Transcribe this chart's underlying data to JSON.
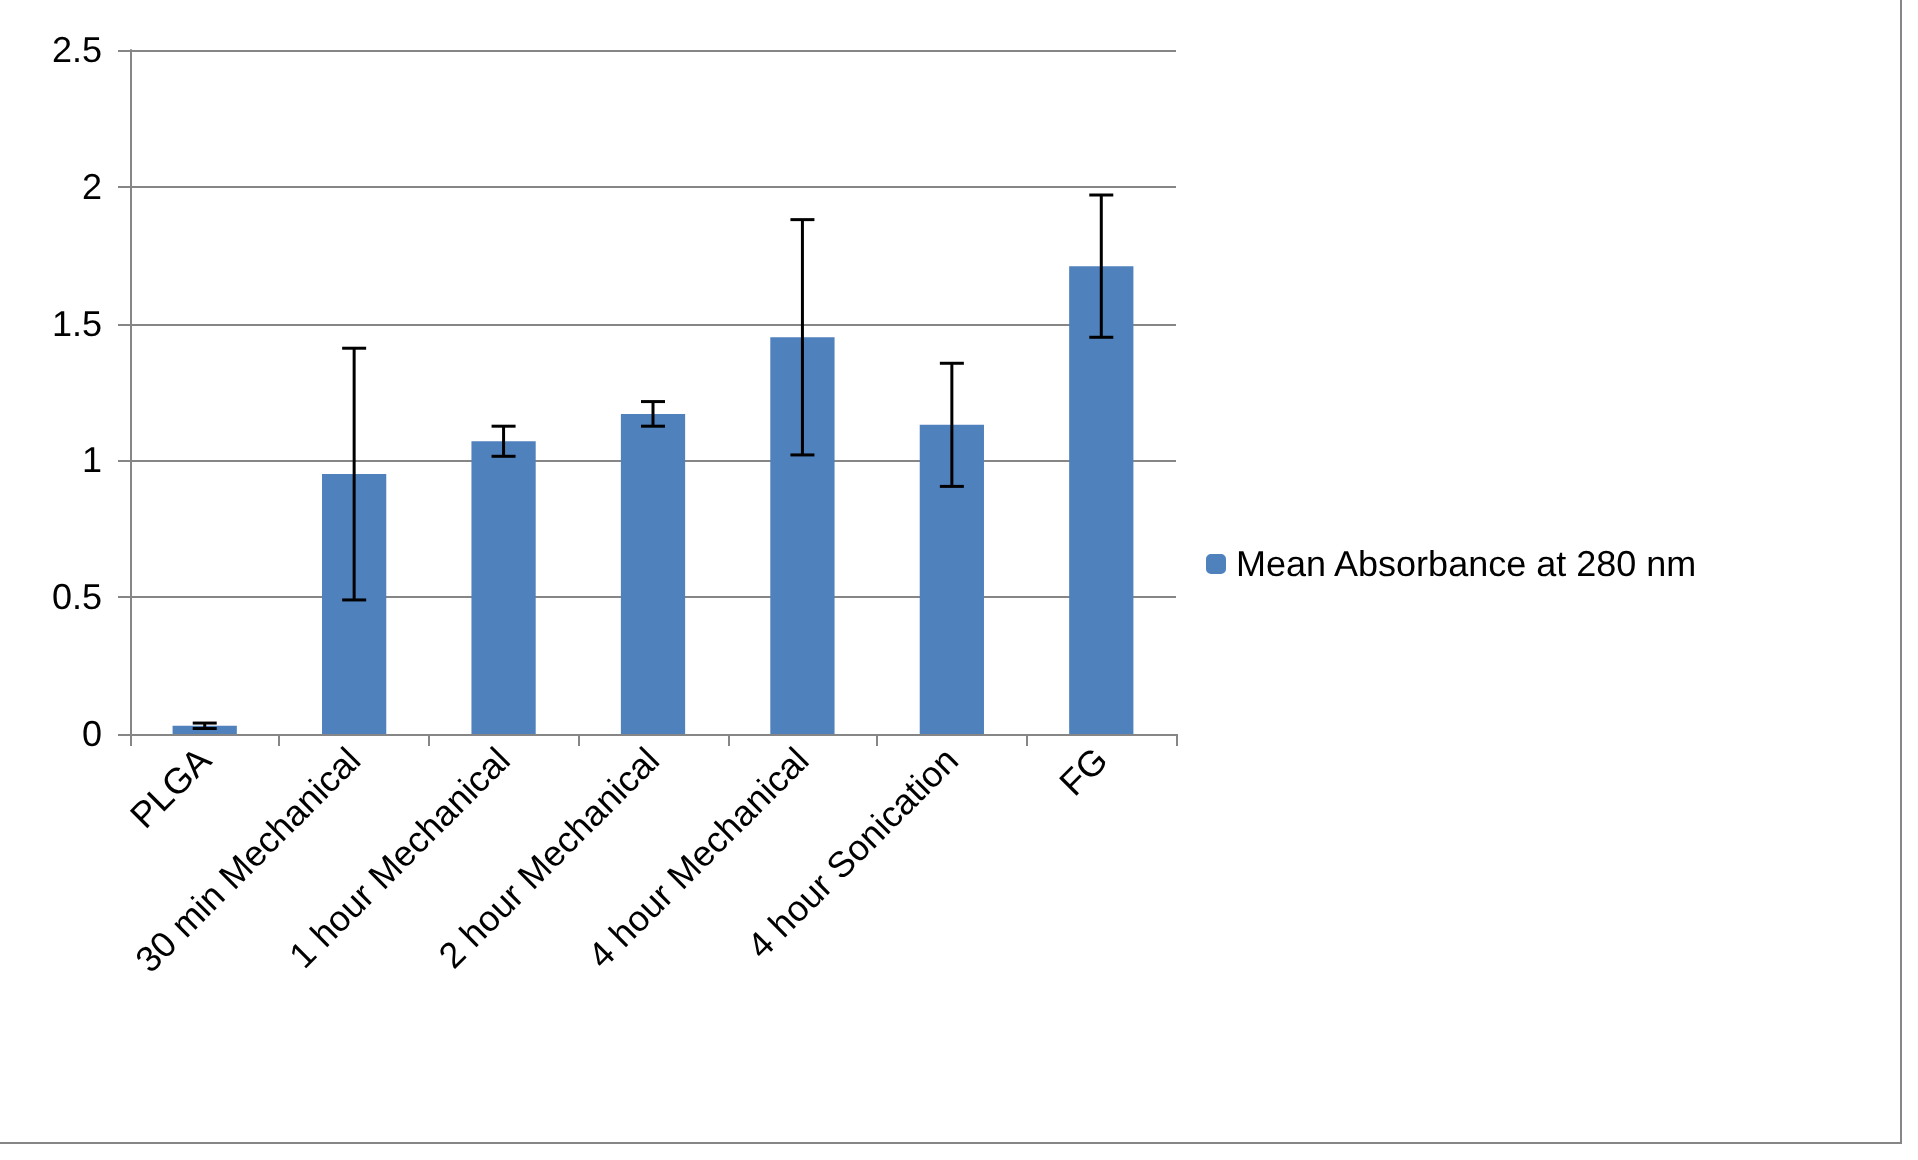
{
  "chart_data": {
    "type": "bar",
    "categories": [
      "PLGA",
      "30 min Mechanical",
      "1 hour Mechanical",
      "2 hour Mechanical",
      "4 hour Mechanical",
      "4 hour Sonication",
      "FG"
    ],
    "series": [
      {
        "name": "Mean Absorbance at 280 nm",
        "color": "#4f81bd",
        "values": [
          0.03,
          0.95,
          1.07,
          1.17,
          1.45,
          1.13,
          1.71
        ],
        "errors": [
          0.01,
          0.46,
          0.055,
          0.045,
          0.43,
          0.225,
          0.26
        ]
      }
    ],
    "ylim": [
      0,
      2.5
    ],
    "yticks": [
      0,
      0.5,
      1,
      1.5,
      2,
      2.5
    ],
    "grid": "y",
    "legend": "right"
  }
}
